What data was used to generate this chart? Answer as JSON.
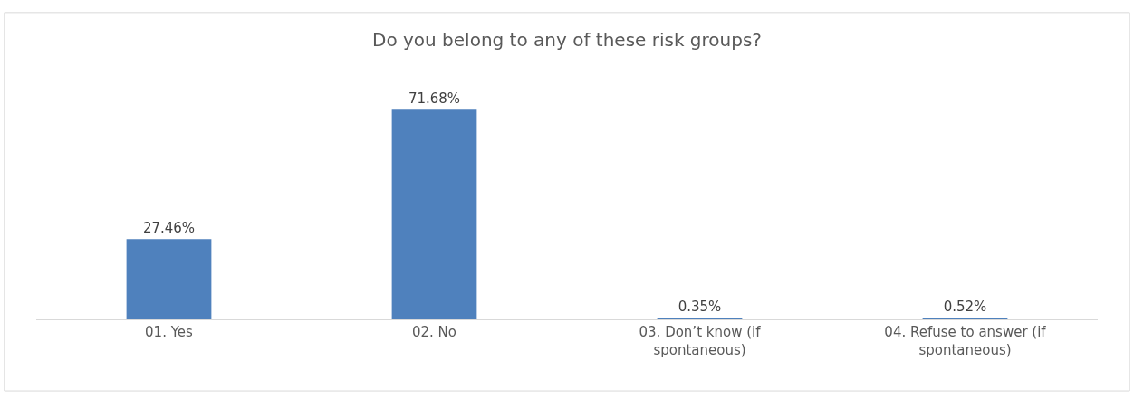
{
  "chart_data": {
    "type": "bar",
    "title": "Do you belong to any of these risk groups?",
    "categories": [
      "01. Yes",
      "02. No",
      "03. Don’t know (if spontaneous)",
      "04. Refuse to answer (if spontaneous)"
    ],
    "values": [
      27.46,
      71.68,
      0.35,
      0.52
    ],
    "value_labels": [
      "27.46%",
      "71.68%",
      "0.35%",
      "0.52%"
    ],
    "color": "#4f81bd"
  }
}
